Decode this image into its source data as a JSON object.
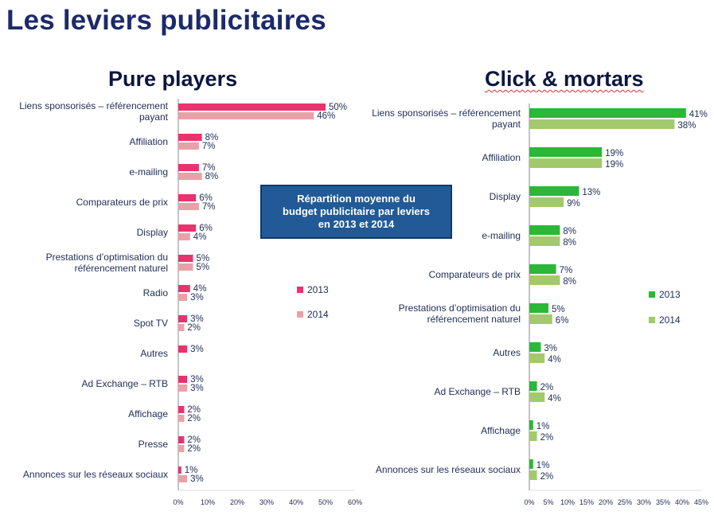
{
  "page": {
    "title": "Les leviers publicitaires"
  },
  "infobox": {
    "line1": "Répartition moyenne du",
    "line2": "budget publicitaire par leviers",
    "line3": "en 2013 et 2014"
  },
  "chart_data": [
    {
      "type": "bar",
      "orientation": "horizontal",
      "title": "Pure players",
      "categories": [
        [
          "Liens sponsorisés – référencement",
          "payant"
        ],
        [
          "Affiliation"
        ],
        [
          "e-mailing"
        ],
        [
          "Comparateurs de prix"
        ],
        [
          "Display"
        ],
        [
          "Prestations d’optimisation du",
          "référencement naturel"
        ],
        [
          "Radio"
        ],
        [
          "Spot TV"
        ],
        [
          "Autres"
        ],
        [
          "Ad Exchange – RTB"
        ],
        [
          "Affichage"
        ],
        [
          "Presse"
        ],
        [
          "Annonces sur les réseaux sociaux"
        ]
      ],
      "series": [
        {
          "name": "2013",
          "color": "#e8336e",
          "values": [
            50,
            8,
            7,
            6,
            6,
            5,
            4,
            3,
            3,
            3,
            2,
            2,
            1
          ],
          "labels": [
            "50%",
            "8%",
            "7%",
            "6%",
            "6%",
            "5%",
            "4%",
            "3%",
            "3%",
            "3%",
            "2%",
            "2%",
            "1%"
          ]
        },
        {
          "name": "2014",
          "color": "#e9a1a8",
          "values": [
            46,
            7,
            8,
            7,
            4,
            5,
            3,
            2,
            null,
            3,
            2,
            2,
            3
          ],
          "labels": [
            "46%",
            "7%",
            "8%",
            "7%",
            "4%",
            "5%",
            "3%",
            "2%",
            "",
            "3%",
            "2%",
            "2%",
            "3%"
          ]
        }
      ],
      "xlim": [
        0,
        60
      ],
      "xticks": [
        "0%",
        "10%",
        "20%",
        "30%",
        "40%",
        "50%",
        "60%"
      ],
      "legend_position": "right-middle"
    },
    {
      "type": "bar",
      "orientation": "horizontal",
      "title": "Click & mortars",
      "categories": [
        [
          "Liens sponsorisés – référencement",
          "payant"
        ],
        [
          "Affiliation"
        ],
        [
          "Display"
        ],
        [
          "e-mailing"
        ],
        [
          "Comparateurs de prix"
        ],
        [
          "Prestations d’optimisation du",
          "référencement naturel"
        ],
        [
          "Autres"
        ],
        [
          "Ad Exchange – RTB"
        ],
        [
          "Affichage"
        ],
        [
          "Annonces sur les réseaux sociaux"
        ]
      ],
      "series": [
        {
          "name": "2013",
          "color": "#2bb737",
          "values": [
            41,
            19,
            13,
            8,
            7,
            5,
            3,
            2,
            1,
            1
          ],
          "labels": [
            "41%",
            "19%",
            "13%",
            "8%",
            "7%",
            "5%",
            "3%",
            "2%",
            "1%",
            "1%"
          ]
        },
        {
          "name": "2014",
          "color": "#a2c96c",
          "values": [
            38,
            19,
            9,
            8,
            8,
            6,
            4,
            4,
            2,
            2
          ],
          "labels": [
            "38%",
            "19%",
            "9%",
            "8%",
            "8%",
            "6%",
            "4%",
            "4%",
            "2%",
            "2%"
          ]
        }
      ],
      "xlim": [
        0,
        45
      ],
      "xticks": [
        "0%",
        "5%",
        "10%",
        "15%",
        "20%",
        "25%",
        "30%",
        "35%",
        "40%",
        "45%"
      ],
      "legend_position": "right-middle"
    }
  ]
}
